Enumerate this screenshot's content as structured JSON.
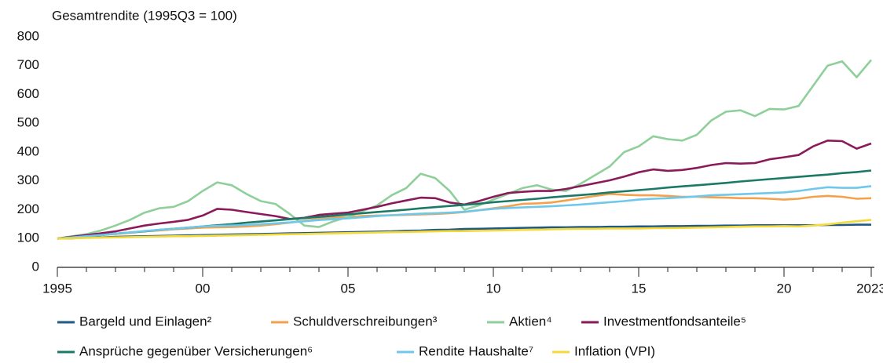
{
  "chart_data": {
    "type": "line",
    "y_label": "Gesamtrendite (1995Q3 = 100)",
    "x": [
      1995,
      1995.5,
      1996,
      1996.5,
      1997,
      1997.5,
      1998,
      1998.5,
      1999,
      1999.5,
      2000,
      2000.5,
      2001,
      2001.5,
      2002,
      2002.5,
      2003,
      2003.5,
      2004,
      2004.5,
      2005,
      2005.5,
      2006,
      2006.5,
      2007,
      2007.5,
      2008,
      2008.5,
      2009,
      2009.5,
      2010,
      2010.5,
      2011,
      2011.5,
      2012,
      2012.5,
      2013,
      2013.5,
      2014,
      2014.5,
      2015,
      2015.5,
      2016,
      2016.5,
      2017,
      2017.5,
      2018,
      2018.5,
      2019,
      2019.5,
      2020,
      2020.5,
      2021,
      2021.5,
      2022,
      2022.5,
      2023
    ],
    "xlim": [
      1995,
      2023
    ],
    "xticks": [
      1995,
      {
        "value": 2000,
        "label": "00"
      },
      {
        "value": 2005,
        "label": "05"
      },
      {
        "value": 2010,
        "label": "10"
      },
      {
        "value": 2015,
        "label": "15"
      },
      {
        "value": 2020,
        "label": "20"
      },
      2023
    ],
    "ylim": [
      0,
      800
    ],
    "yticks": [
      0,
      100,
      200,
      300,
      400,
      500,
      600,
      700,
      800
    ],
    "grid": false,
    "legend": "bottom",
    "series": [
      {
        "name": "Bargeld und Einlagen²",
        "color": "#1f5a87",
        "values": [
          100,
          101,
          103,
          104,
          106,
          107,
          108,
          109,
          110,
          111,
          112,
          113,
          114,
          115,
          116,
          117,
          118,
          119,
          120,
          121,
          122,
          123,
          124,
          125,
          127,
          128,
          130,
          131,
          133,
          134,
          135,
          136,
          137,
          138,
          139,
          139,
          140,
          140,
          141,
          141,
          142,
          142,
          143,
          143,
          144,
          144,
          145,
          145,
          146,
          146,
          146,
          146,
          146,
          147,
          147,
          148,
          148
        ]
      },
      {
        "name": "Schuldverschreibungen³",
        "color": "#f5a04a",
        "values": [
          100,
          104,
          108,
          112,
          116,
          120,
          125,
          128,
          132,
          135,
          138,
          139,
          140,
          142,
          145,
          150,
          155,
          162,
          168,
          172,
          175,
          178,
          180,
          181,
          182,
          184,
          185,
          188,
          192,
          198,
          205,
          212,
          220,
          222,
          225,
          232,
          240,
          248,
          255,
          252,
          250,
          250,
          248,
          245,
          245,
          243,
          242,
          240,
          240,
          238,
          235,
          238,
          245,
          248,
          245,
          238,
          240
        ]
      },
      {
        "name": "Aktien⁴",
        "color": "#8fcf9a",
        "values": [
          100,
          108,
          115,
          128,
          145,
          165,
          190,
          205,
          210,
          230,
          265,
          295,
          285,
          255,
          230,
          220,
          185,
          145,
          140,
          160,
          175,
          195,
          215,
          250,
          275,
          325,
          310,
          265,
          200,
          215,
          235,
          255,
          275,
          285,
          270,
          265,
          290,
          320,
          350,
          400,
          420,
          455,
          445,
          440,
          460,
          510,
          540,
          545,
          525,
          550,
          548,
          560,
          630,
          700,
          715,
          660,
          720
        ]
      },
      {
        "name": "Investmentfondsanteile⁵",
        "color": "#8b1a5a",
        "values": [
          100,
          106,
          112,
          118,
          125,
          135,
          145,
          152,
          158,
          165,
          180,
          203,
          200,
          192,
          185,
          178,
          168,
          172,
          182,
          186,
          190,
          200,
          210,
          222,
          232,
          242,
          240,
          225,
          218,
          230,
          245,
          258,
          262,
          265,
          265,
          272,
          282,
          292,
          302,
          315,
          330,
          340,
          335,
          338,
          345,
          355,
          362,
          360,
          362,
          375,
          382,
          390,
          420,
          440,
          438,
          412,
          430
        ]
      },
      {
        "name": "Ansprüche gegenüber Versicherungen⁶",
        "color": "#1a7a66",
        "values": [
          100,
          104,
          108,
          112,
          117,
          121,
          125,
          130,
          134,
          138,
          142,
          146,
          150,
          155,
          159,
          163,
          167,
          171,
          175,
          179,
          184,
          188,
          192,
          196,
          200,
          205,
          209,
          213,
          217,
          221,
          226,
          230,
          234,
          238,
          243,
          247,
          251,
          255,
          260,
          264,
          268,
          272,
          277,
          281,
          285,
          289,
          293,
          298,
          302,
          306,
          310,
          314,
          318,
          322,
          327,
          331,
          336
        ]
      },
      {
        "name": "Rendite Haushalte⁷",
        "color": "#6fc8ec",
        "values": [
          100,
          104,
          108,
          112,
          117,
          121,
          126,
          130,
          134,
          138,
          142,
          144,
          145,
          147,
          150,
          153,
          156,
          160,
          164,
          167,
          170,
          174,
          178,
          181,
          184,
          186,
          188,
          190,
          193,
          198,
          203,
          206,
          208,
          210,
          212,
          215,
          218,
          222,
          226,
          230,
          235,
          238,
          240,
          243,
          246,
          250,
          252,
          254,
          256,
          258,
          260,
          265,
          272,
          278,
          276,
          276,
          282
        ]
      },
      {
        "name": "Inflation (VPI)",
        "color": "#f5d93a",
        "values": [
          100,
          101,
          102,
          103,
          104,
          105,
          106,
          107,
          108,
          108,
          109,
          110,
          111,
          112,
          113,
          114,
          115,
          116,
          117,
          118,
          119,
          120,
          121,
          122,
          123,
          124,
          125,
          126,
          126,
          127,
          128,
          129,
          130,
          131,
          132,
          133,
          134,
          134,
          135,
          135,
          135,
          136,
          136,
          137,
          138,
          139,
          140,
          141,
          142,
          142,
          143,
          142,
          145,
          149,
          155,
          160,
          165
        ]
      }
    ]
  }
}
